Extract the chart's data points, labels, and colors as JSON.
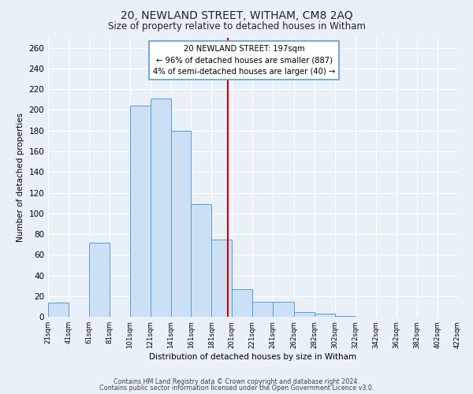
{
  "title": "20, NEWLAND STREET, WITHAM, CM8 2AQ",
  "subtitle": "Size of property relative to detached houses in Witham",
  "xlabel": "Distribution of detached houses by size in Witham",
  "ylabel": "Number of detached properties",
  "bar_color": "#cce0f5",
  "bar_edge_color": "#5b9bd5",
  "background_color": "#eaf0f8",
  "grid_color": "#ffffff",
  "vline_x": 197,
  "vline_color": "#cc0000",
  "annotation_title": "20 NEWLAND STREET: 197sqm",
  "annotation_line1": "← 96% of detached houses are smaller (887)",
  "annotation_line2": "4% of semi-detached houses are larger (40) →",
  "annotation_box_edge": "#5b9bd5",
  "footer_line1": "Contains HM Land Registry data © Crown copyright and database right 2024.",
  "footer_line2": "Contains public sector information licensed under the Open Government Licence v3.0.",
  "bin_left_edges": [
    21,
    41,
    61,
    81,
    101,
    121,
    141,
    161,
    181,
    201,
    221,
    241,
    262,
    282,
    302,
    322,
    342,
    362,
    382,
    402
  ],
  "bin_widths": [
    20,
    20,
    20,
    20,
    20,
    20,
    20,
    20,
    20,
    20,
    20,
    21,
    20,
    20,
    20,
    20,
    20,
    20,
    20,
    20
  ],
  "hist_values": [
    14,
    0,
    72,
    0,
    204,
    211,
    180,
    109,
    75,
    27,
    15,
    15,
    5,
    3,
    1,
    0,
    0,
    0,
    0,
    0
  ],
  "tick_positions": [
    21,
    41,
    61,
    81,
    101,
    121,
    141,
    161,
    181,
    201,
    221,
    241,
    262,
    282,
    302,
    322,
    342,
    362,
    382,
    402,
    422
  ],
  "tick_labels": [
    "21sqm",
    "41sqm",
    "61sqm",
    "81sqm",
    "101sqm",
    "121sqm",
    "141sqm",
    "161sqm",
    "181sqm",
    "201sqm",
    "221sqm",
    "241sqm",
    "262sqm",
    "282sqm",
    "302sqm",
    "322sqm",
    "342sqm",
    "362sqm",
    "382sqm",
    "402sqm",
    "422sqm"
  ],
  "ylim": [
    0,
    270
  ],
  "yticks": [
    0,
    20,
    40,
    60,
    80,
    100,
    120,
    140,
    160,
    180,
    200,
    220,
    240,
    260
  ],
  "xlim_left": 21,
  "xlim_right": 422
}
